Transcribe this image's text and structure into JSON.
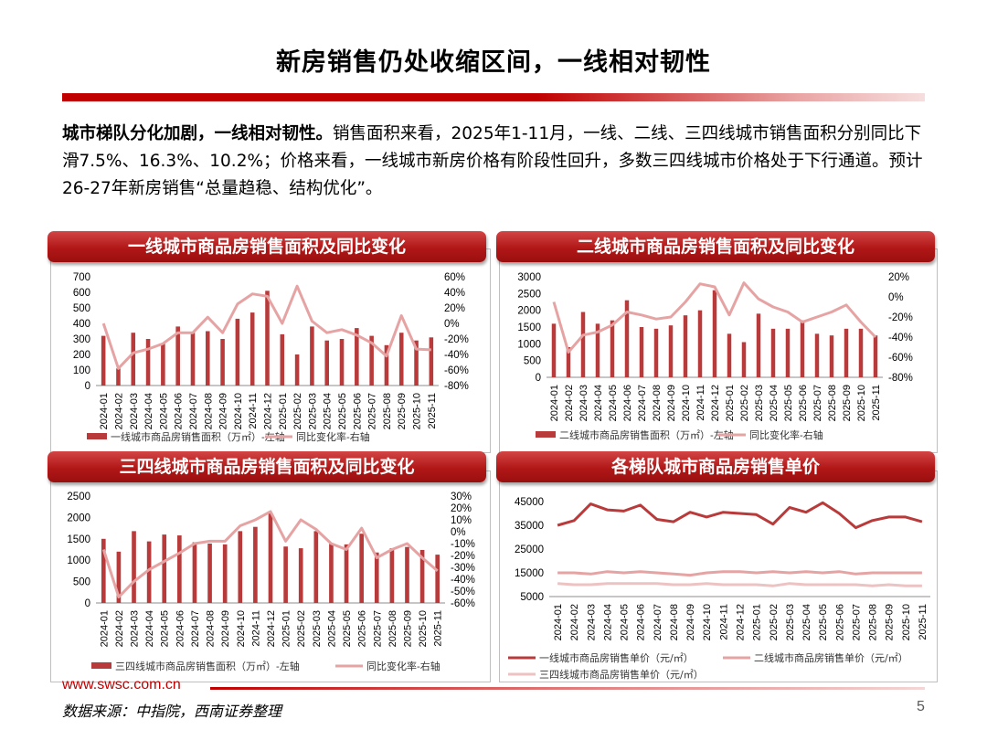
{
  "page": {
    "title": "新房销售仍处收缩区间，一线相对韧性",
    "intro_bold": "城市梯队分化加剧，一线相对韧性。",
    "intro_text": "销售面积来看，2025年1-11月，一线、二线、三四线城市销售面积分别同比下滑7.5%、16.3%、10.2%；价格来看，一线城市新房价格有阶段性回升，多数三四线城市价格处于下行通道。预计26-27年新房销售“总量趋稳、结构优化”。",
    "footer_url": "www.swsc.com.cn",
    "source": "数据来源：中指院，西南证券整理",
    "page_number": "5"
  },
  "colors": {
    "bar": "#b93a3a",
    "line_light": "#e6a3a3",
    "line_dark": "#b93a3a",
    "header": "#b11717"
  },
  "chart_data": [
    {
      "type": "bar",
      "title": "一线城市商品房销售面积及同比变化",
      "categories": [
        "2024-01",
        "2024-02",
        "2024-03",
        "2024-04",
        "2024-05",
        "2024-06",
        "2024-07",
        "2024-08",
        "2024-09",
        "2024-10",
        "2024-11",
        "2024-12",
        "2025-01",
        "2025-02",
        "2025-03",
        "2025-04",
        "2025-05",
        "2025-06",
        "2025-07",
        "2025-08",
        "2025-09",
        "2025-10",
        "2025-11"
      ],
      "series": [
        {
          "name": "一线城市商品房销售面积（万㎡）-左轴",
          "kind": "bar",
          "axis": "left",
          "values": [
            320,
            110,
            340,
            300,
            270,
            380,
            340,
            350,
            300,
            430,
            470,
            610,
            330,
            200,
            380,
            290,
            300,
            370,
            320,
            260,
            340,
            290,
            310
          ]
        },
        {
          "name": "同比变化率-右轴",
          "kind": "line",
          "axis": "right",
          "values": [
            0,
            -58,
            -38,
            -33,
            -26,
            -12,
            -12,
            8,
            -12,
            25,
            38,
            35,
            0,
            48,
            3,
            -12,
            -8,
            -15,
            -25,
            -42,
            10,
            -33,
            -34
          ]
        }
      ],
      "yleft": {
        "min": 0,
        "max": 700,
        "ticks": [
          "0",
          "100",
          "200",
          "300",
          "400",
          "500",
          "600",
          "700"
        ]
      },
      "yright": {
        "min": -80,
        "max": 60,
        "ticks": [
          "-80%",
          "-60%",
          "-40%",
          "-20%",
          "0%",
          "20%",
          "40%",
          "60%"
        ]
      }
    },
    {
      "type": "bar",
      "title": "二线城市商品房销售面积及同比变化",
      "categories": [
        "2024-01",
        "2024-02",
        "2024-03",
        "2024-04",
        "2024-05",
        "2024-06",
        "2024-07",
        "2024-08",
        "2024-09",
        "2024-10",
        "2024-11",
        "2024-12",
        "2025-01",
        "2025-02",
        "2025-03",
        "2025-04",
        "2025-05",
        "2025-06",
        "2025-07",
        "2025-08",
        "2025-09",
        "2025-10",
        "2025-11"
      ],
      "series": [
        {
          "name": "二线城市商品房销售面积（万㎡）-左轴",
          "kind": "bar",
          "axis": "left",
          "values": [
            1600,
            900,
            1950,
            1600,
            1700,
            2300,
            1500,
            1450,
            1550,
            1850,
            2000,
            2600,
            1300,
            1050,
            1900,
            1450,
            1450,
            1700,
            1300,
            1250,
            1450,
            1450,
            1250
          ]
        },
        {
          "name": "同比变化率-右轴",
          "kind": "line",
          "axis": "right",
          "values": [
            -5,
            -55,
            -38,
            -35,
            -28,
            -15,
            -18,
            -22,
            -20,
            -5,
            13,
            10,
            -18,
            14,
            -2,
            -10,
            -15,
            -25,
            -20,
            -15,
            -8,
            -25,
            -40
          ]
        }
      ],
      "yleft": {
        "min": 0,
        "max": 3000,
        "ticks": [
          "0",
          "500",
          "1000",
          "1500",
          "2000",
          "2500",
          "3000"
        ]
      },
      "yright": {
        "min": -80,
        "max": 20,
        "ticks": [
          "-80%",
          "-60%",
          "-40%",
          "-20%",
          "0%",
          "20%"
        ]
      }
    },
    {
      "type": "bar",
      "title": "三四线城市商品房销售面积及同比变化",
      "categories": [
        "2024-01",
        "2024-02",
        "2024-03",
        "2024-04",
        "2024-05",
        "2024-06",
        "2024-07",
        "2024-08",
        "2024-09",
        "2024-10",
        "2024-11",
        "2024-12",
        "2025-01",
        "2025-02",
        "2025-03",
        "2025-04",
        "2025-05",
        "2025-06",
        "2025-07",
        "2025-08",
        "2025-09",
        "2025-10",
        "2025-11"
      ],
      "series": [
        {
          "name": "三四线城市商品房销售面积（万㎡）-左轴",
          "kind": "bar",
          "axis": "left",
          "values": [
            1500,
            1200,
            1680,
            1440,
            1600,
            1580,
            1420,
            1390,
            1370,
            1680,
            1780,
            2100,
            1320,
            1280,
            1680,
            1380,
            1370,
            1620,
            1180,
            1280,
            1310,
            1240,
            1130
          ]
        },
        {
          "name": "同比变化率-右轴",
          "kind": "line",
          "axis": "right",
          "values": [
            -15,
            -55,
            -42,
            -32,
            -25,
            -18,
            -10,
            -8,
            -8,
            5,
            10,
            17,
            -8,
            10,
            2,
            -10,
            -15,
            3,
            -22,
            -15,
            -10,
            -22,
            -33
          ]
        }
      ],
      "yleft": {
        "min": 0,
        "max": 2500,
        "ticks": [
          "0",
          "500",
          "1000",
          "1500",
          "2000",
          "2500"
        ]
      },
      "yright": {
        "min": -60,
        "max": 30,
        "ticks": [
          "-60%",
          "-50%",
          "-40%",
          "-30%",
          "-20%",
          "-10%",
          "0%",
          "10%",
          "20%",
          "30%"
        ]
      }
    },
    {
      "type": "line",
      "title": "各梯队城市商品房销售单价",
      "categories": [
        "2024-01",
        "2024-02",
        "2024-03",
        "2024-04",
        "2024-05",
        "2024-06",
        "2024-07",
        "2024-08",
        "2024-09",
        "2024-10",
        "2024-11",
        "2024-12",
        "2025-01",
        "2025-02",
        "2025-03",
        "2025-04",
        "2025-05",
        "2025-06",
        "2025-07",
        "2025-08",
        "2025-09",
        "2025-10",
        "2025-11"
      ],
      "series": [
        {
          "name": "一线城市商品房销售单价（元/㎡）",
          "kind": "line",
          "tone": "dark",
          "values": [
            35000,
            37000,
            44000,
            41500,
            41000,
            43500,
            37500,
            36500,
            40500,
            38500,
            40500,
            40000,
            39500,
            35500,
            42500,
            40500,
            44500,
            40000,
            34000,
            37000,
            38500,
            38500,
            36500
          ]
        },
        {
          "name": "二线城市商品房销售单价（元/㎡）",
          "kind": "line",
          "tone": "light",
          "values": [
            15000,
            15000,
            14500,
            15500,
            15000,
            15500,
            15000,
            14500,
            14000,
            15000,
            15500,
            15500,
            15000,
            15500,
            15000,
            15500,
            15000,
            15500,
            14500,
            15000,
            15000,
            15000,
            15000
          ]
        },
        {
          "name": "三四线城市商品房销售单价（元/㎡）",
          "kind": "line",
          "tone": "pale",
          "values": [
            10500,
            10000,
            10000,
            10500,
            10500,
            10500,
            10500,
            10000,
            10000,
            10500,
            10000,
            10000,
            10000,
            9500,
            10500,
            10000,
            10000,
            10000,
            10000,
            9500,
            10000,
            9500,
            9500
          ]
        }
      ],
      "yleft": {
        "min": 5000,
        "max": 45000,
        "ticks": [
          "5000",
          "15000",
          "25000",
          "35000",
          "45000"
        ]
      }
    }
  ]
}
